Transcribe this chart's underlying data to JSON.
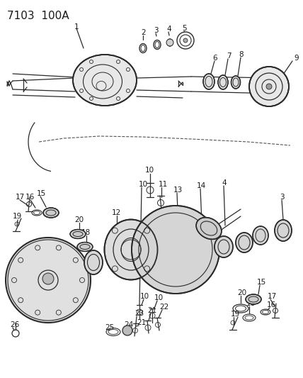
{
  "title": "7103  100A",
  "bg_color": "#ffffff",
  "line_color": "#2a2a2a",
  "label_color": "#1a1a1a",
  "title_fontsize": 11,
  "label_fontsize": 7.5,
  "lw_main": 0.9,
  "lw_thin": 0.6
}
